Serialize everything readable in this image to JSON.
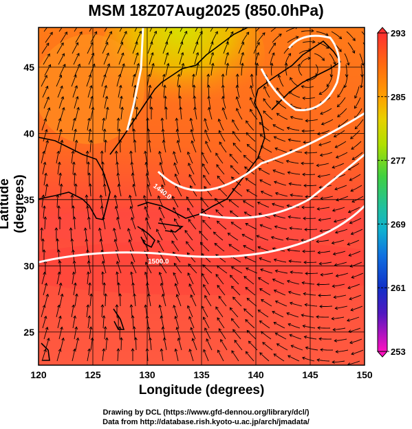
{
  "title": "MSM 18Z07Aug2025 (850.0hPa)",
  "xlabel": "Longitude (degrees)",
  "ylabel": "Latitude  (degrees)",
  "credits": [
    "Drawing by DCL (https://www.gfd-dennou.org/library/dcl/)",
    "Data from http://database.rish.kyoto-u.ac.jp/arch/jmadata/"
  ],
  "colorbar": {
    "ticks": [
      "293",
      "285",
      "277",
      "269",
      "261",
      "253"
    ],
    "colors_top_to_bottom": [
      "#ff3030",
      "#ff6a10",
      "#ffa000",
      "#e8d000",
      "#b0e000",
      "#50d040",
      "#20c080",
      "#10b0c0",
      "#1080e0",
      "#1040d0",
      "#3020c0",
      "#9010c8",
      "#ff10c0"
    ]
  },
  "contours": [
    {
      "label": "1440.0",
      "value": 1440.0
    },
    {
      "label": "1480.0",
      "value": 1480.0
    },
    {
      "label": "1500.0",
      "value": 1500.0
    }
  ],
  "chart_data": {
    "type": "heatmap",
    "title": "MSM 18Z07Aug2025 (850.0hPa)",
    "xlabel": "Longitude (degrees)",
    "ylabel": "Latitude  (degrees)",
    "xlim": [
      120,
      150
    ],
    "ylim": [
      22.5,
      48
    ],
    "xticks": [
      120,
      125,
      130,
      135,
      140,
      145,
      150
    ],
    "yticks": [
      25,
      30,
      35,
      40,
      45
    ],
    "colorbar_range": [
      253,
      293
    ],
    "colorbar_ticks": [
      293,
      285,
      277,
      269,
      261,
      253
    ],
    "warm_core_latitudes": [
      27,
      33
    ],
    "cool_region": {
      "lon": [
        128,
        142
      ],
      "lat": [
        41,
        48
      ],
      "value_approx": 284
    }
  }
}
